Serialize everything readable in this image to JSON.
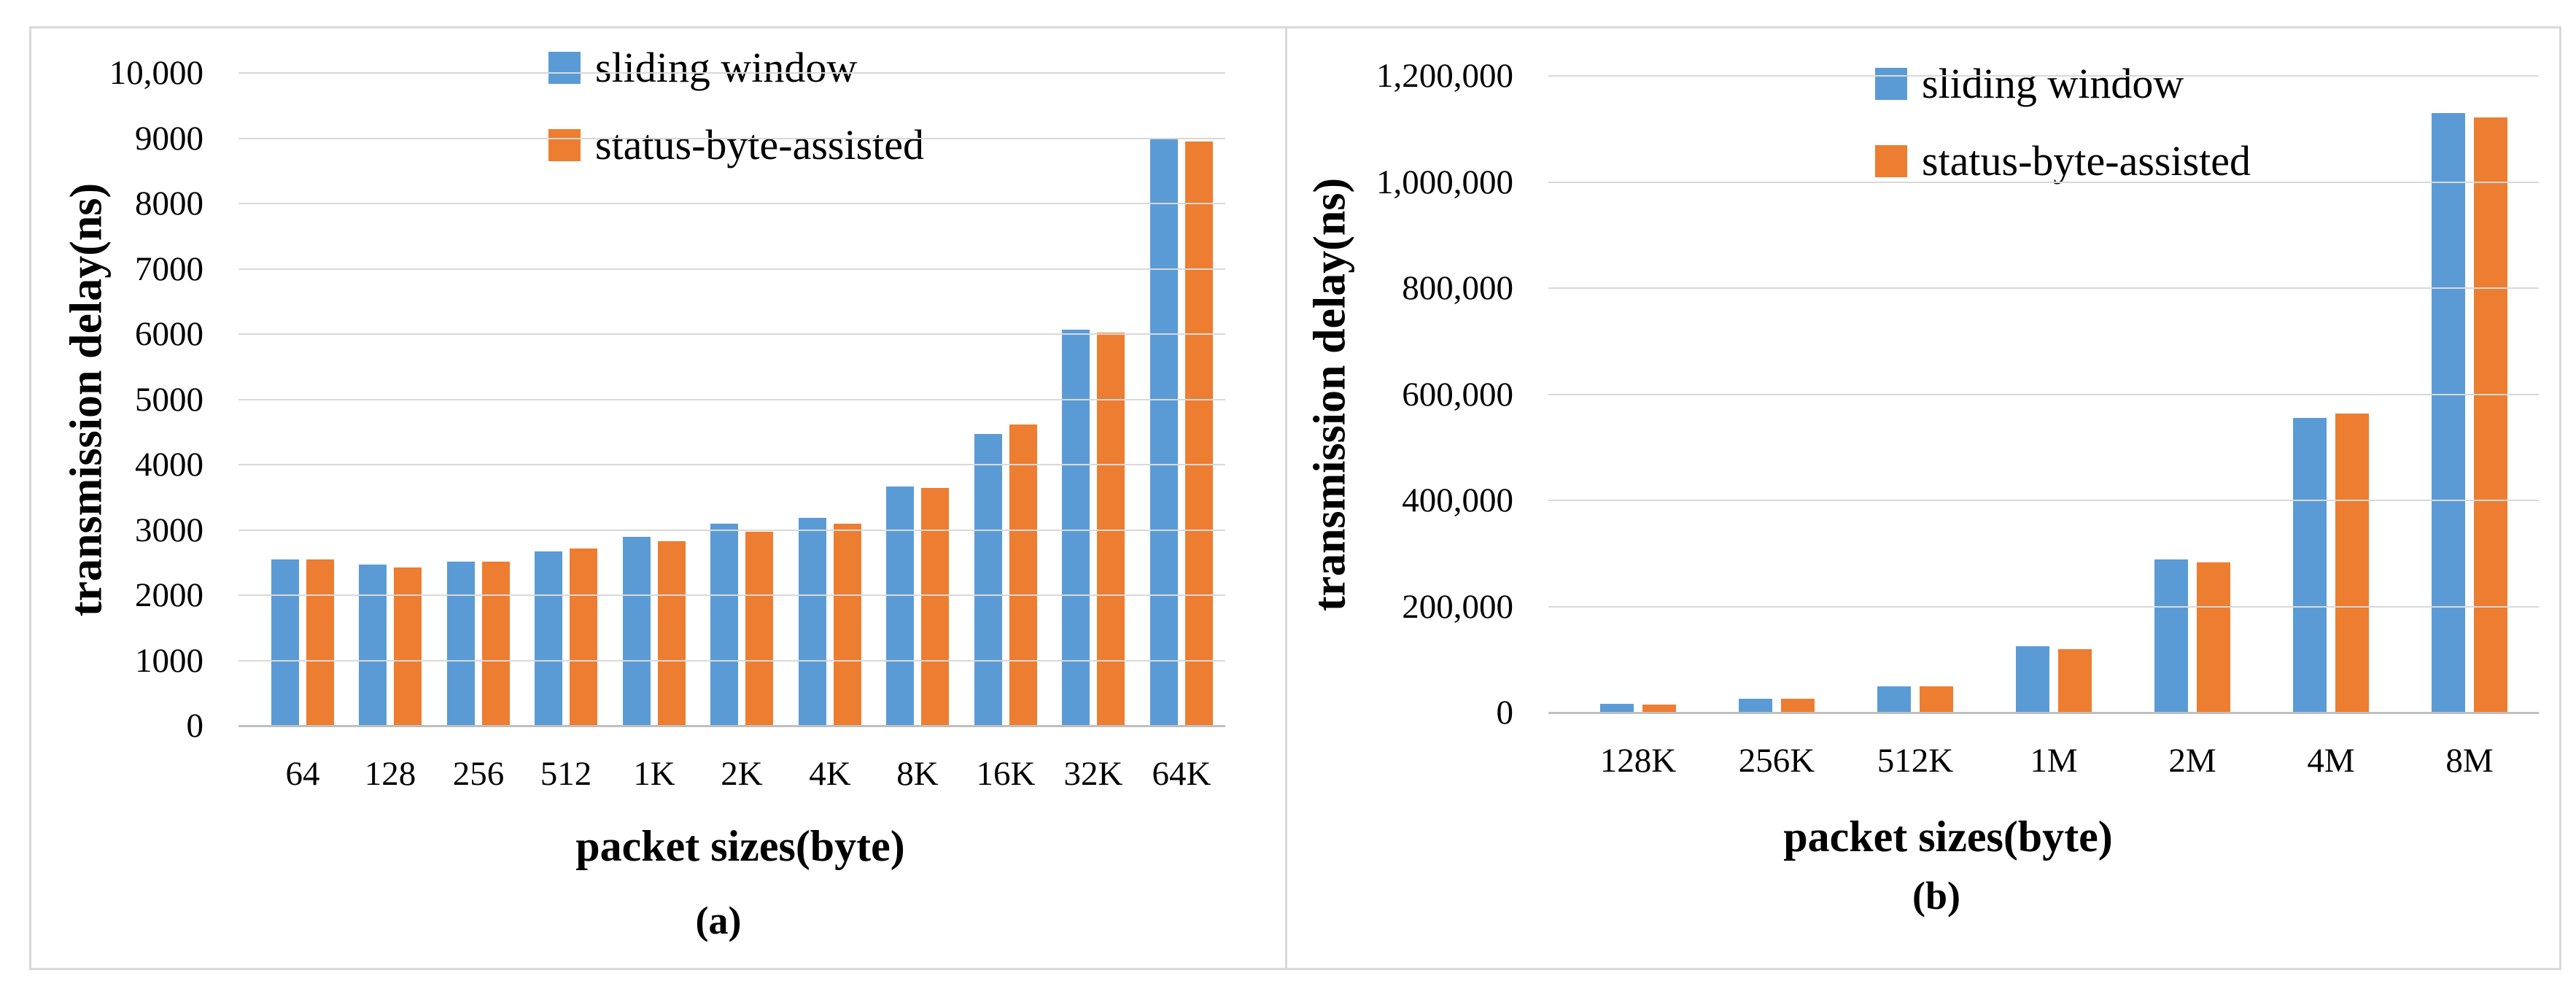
{
  "figure": {
    "description": "Two-panel grouped bar chart figure comparing transmission delay of sliding window vs status-byte-assisted schemes"
  },
  "colors": {
    "sliding_window": "#5b9bd5",
    "status_byte_assisted": "#ed7d31",
    "gridline": "#d9d9d9",
    "axis_line": "#bfbfbf",
    "frame_border": "#d9d9d9",
    "text": "#000000"
  },
  "chart_data": [
    {
      "type": "bar",
      "caption": "(a)",
      "xlabel": "packet sizes(byte)",
      "ylabel": "transmission delay(ns)",
      "ylim": [
        0,
        10000
      ],
      "grid": true,
      "legend_position": "top-center",
      "categories": [
        "64",
        "128",
        "256",
        "512",
        "1K",
        "2K",
        "4K",
        "8K",
        "16K",
        "32K",
        "64K"
      ],
      "yticks": [
        {
          "value": 10000,
          "label": "10,000"
        },
        {
          "value": 9000,
          "label": "9000"
        },
        {
          "value": 8000,
          "label": "8000"
        },
        {
          "value": 7000,
          "label": "7000"
        },
        {
          "value": 6000,
          "label": "6000"
        },
        {
          "value": 5000,
          "label": "5000"
        },
        {
          "value": 4000,
          "label": "4000"
        },
        {
          "value": 3000,
          "label": "3000"
        },
        {
          "value": 2000,
          "label": "2000"
        },
        {
          "value": 1000,
          "label": "1000"
        },
        {
          "value": 0,
          "label": "0"
        }
      ],
      "series": [
        {
          "name": "sliding window",
          "color": "#5b9bd5",
          "values": [
            2550,
            2470,
            2510,
            2670,
            2890,
            3090,
            3180,
            3670,
            4470,
            6070,
            8990
          ]
        },
        {
          "name": "status-byte-assisted",
          "color": "#ed7d31",
          "values": [
            2550,
            2430,
            2510,
            2720,
            2830,
            2970,
            3090,
            3640,
            4610,
            6020,
            8950
          ]
        }
      ]
    },
    {
      "type": "bar",
      "caption": "(b)",
      "xlabel": "packet sizes(byte)",
      "ylabel": "transmission delay(ns)",
      "ylim": [
        0,
        1200000
      ],
      "grid": true,
      "legend_position": "top-center",
      "categories": [
        "128K",
        "256K",
        "512K",
        "1M",
        "2M",
        "4M",
        "8M"
      ],
      "yticks": [
        {
          "value": 1200000,
          "label": "1,200,000"
        },
        {
          "value": 1000000,
          "label": "1,000,000"
        },
        {
          "value": 800000,
          "label": "800,000"
        },
        {
          "value": 600000,
          "label": "600,000"
        },
        {
          "value": 400000,
          "label": "400,000"
        },
        {
          "value": 200000,
          "label": "200,000"
        },
        {
          "value": 0,
          "label": "0"
        }
      ],
      "series": [
        {
          "name": "sliding window",
          "color": "#5b9bd5",
          "values": [
            16000,
            26000,
            50000,
            125000,
            289000,
            556000,
            1130000
          ]
        },
        {
          "name": "status-byte-assisted",
          "color": "#ed7d31",
          "values": [
            15000,
            25500,
            50000,
            119000,
            283000,
            563000,
            1122000
          ]
        }
      ]
    }
  ]
}
